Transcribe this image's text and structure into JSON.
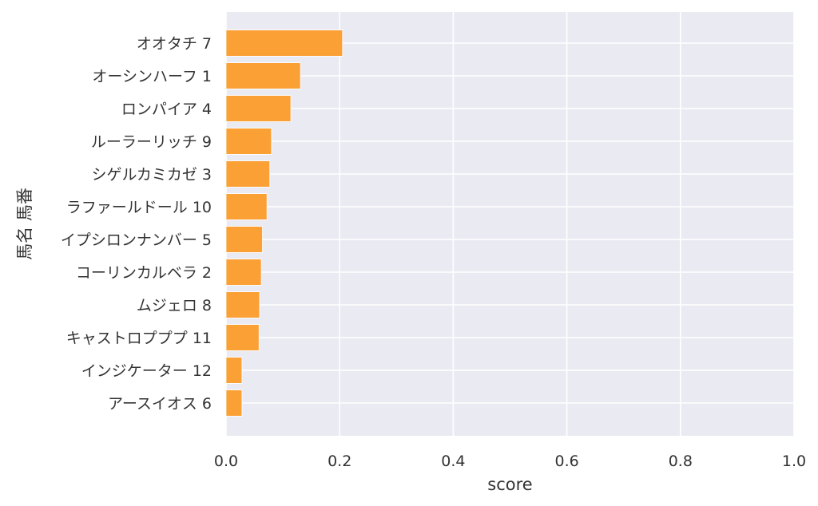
{
  "chart_data": {
    "type": "bar",
    "orientation": "horizontal",
    "categories": [
      "オオタチ 7",
      "オーシンハーフ 1",
      "ロンパイア 4",
      "ルーラーリッチ 9",
      "シゲルカミカゼ 3",
      "ラファールドール 10",
      "イプシロンナンバー 5",
      "コーリンカルベラ 2",
      "ムジェロ 8",
      "キャストロプププ 11",
      "インジケーター 12",
      "アースイオス 6"
    ],
    "values": [
      0.205,
      0.131,
      0.114,
      0.08,
      0.077,
      0.072,
      0.064,
      0.062,
      0.059,
      0.058,
      0.028,
      0.028
    ],
    "xlabel": "score",
    "ylabel": "馬名 馬番",
    "xlim": [
      0,
      1.0
    ],
    "xticks": [
      "0.0",
      "0.2",
      "0.4",
      "0.6",
      "0.8",
      "1.0"
    ],
    "grid": true,
    "colors": {
      "bar": "#fba035",
      "bar_edge": "#ffffff",
      "plot_background": "#eaeaf2",
      "grid": "#ffffff"
    }
  }
}
